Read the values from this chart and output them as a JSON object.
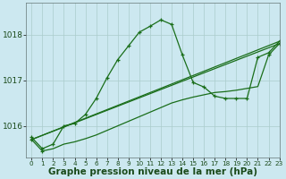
{
  "title": "Graphe pression niveau de la mer (hPa)",
  "background_color": "#cce8f0",
  "grid_color": "#aacccc",
  "line_color": "#1a6e1a",
  "ylim": [
    1015.3,
    1018.7
  ],
  "xlim": [
    -0.5,
    23
  ],
  "yticks": [
    1016,
    1017,
    1018
  ],
  "xticks": [
    0,
    1,
    2,
    3,
    4,
    5,
    6,
    7,
    8,
    9,
    10,
    11,
    12,
    13,
    14,
    15,
    16,
    17,
    18,
    19,
    20,
    21,
    22,
    23
  ],
  "series1_x": [
    0,
    1,
    2,
    3,
    4,
    5,
    6,
    7,
    8,
    9,
    10,
    11,
    12,
    13,
    14,
    15,
    16,
    17,
    18,
    19,
    20,
    21,
    22,
    23
  ],
  "series1_y": [
    1015.75,
    1015.5,
    1015.6,
    1016.0,
    1016.05,
    1016.25,
    1016.6,
    1017.05,
    1017.45,
    1017.75,
    1018.05,
    1018.18,
    1018.32,
    1018.22,
    1017.55,
    1016.95,
    1016.85,
    1016.65,
    1016.6,
    1016.6,
    1016.6,
    1017.5,
    1017.6,
    1017.85
  ],
  "series2_x": [
    0,
    1,
    2,
    3,
    4,
    5,
    6,
    7,
    8,
    9,
    10,
    11,
    12,
    13,
    14,
    15,
    16,
    17,
    18,
    19,
    20,
    21,
    22,
    23
  ],
  "series2_y": [
    1015.7,
    1015.45,
    1015.5,
    1015.6,
    1015.65,
    1015.72,
    1015.8,
    1015.9,
    1016.0,
    1016.1,
    1016.2,
    1016.3,
    1016.4,
    1016.5,
    1016.57,
    1016.63,
    1016.68,
    1016.73,
    1016.75,
    1016.78,
    1016.82,
    1016.86,
    1017.55,
    1017.8
  ],
  "series3_x": [
    0,
    23
  ],
  "series3_y": [
    1015.7,
    1017.8
  ],
  "series4_x": [
    0,
    23
  ],
  "series4_y": [
    1015.7,
    1017.85
  ],
  "xlabel_fontsize": 6.5,
  "ylabel_fontsize": 6.5,
  "title_fontsize": 7.5
}
